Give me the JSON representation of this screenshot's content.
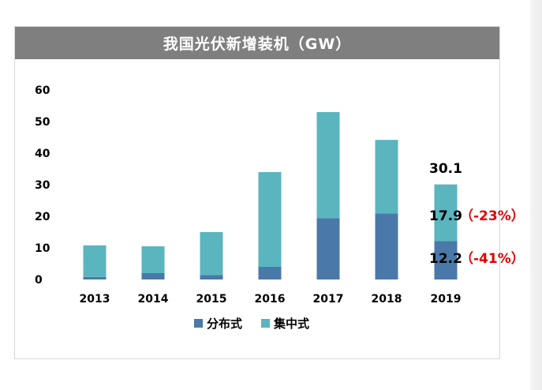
{
  "chart_data": {
    "type": "bar",
    "stacked": true,
    "title": "我国光伏新增装机（GW）",
    "categories": [
      "2013",
      "2014",
      "2015",
      "2016",
      "2017",
      "2018",
      "2019"
    ],
    "series": [
      {
        "name": "分布式",
        "color": "#4a78a8",
        "values": [
          0.8,
          2.0,
          1.4,
          4.0,
          19.4,
          20.9,
          12.2
        ]
      },
      {
        "name": "集中式",
        "color": "#5ab5be",
        "values": [
          10.0,
          8.5,
          13.6,
          30.0,
          33.6,
          23.3,
          17.9
        ]
      }
    ],
    "ylim": [
      0,
      60
    ],
    "yticks": [
      "0",
      "10",
      "20",
      "30",
      "40",
      "50",
      "60"
    ],
    "xlabel": "",
    "ylabel": "",
    "legend_position": "bottom",
    "annotations": {
      "total": "30.1",
      "centralized_value": "17.9",
      "centralized_change": "（-23%）",
      "distributed_value": "12.2",
      "distributed_change": "（-41%）"
    }
  }
}
